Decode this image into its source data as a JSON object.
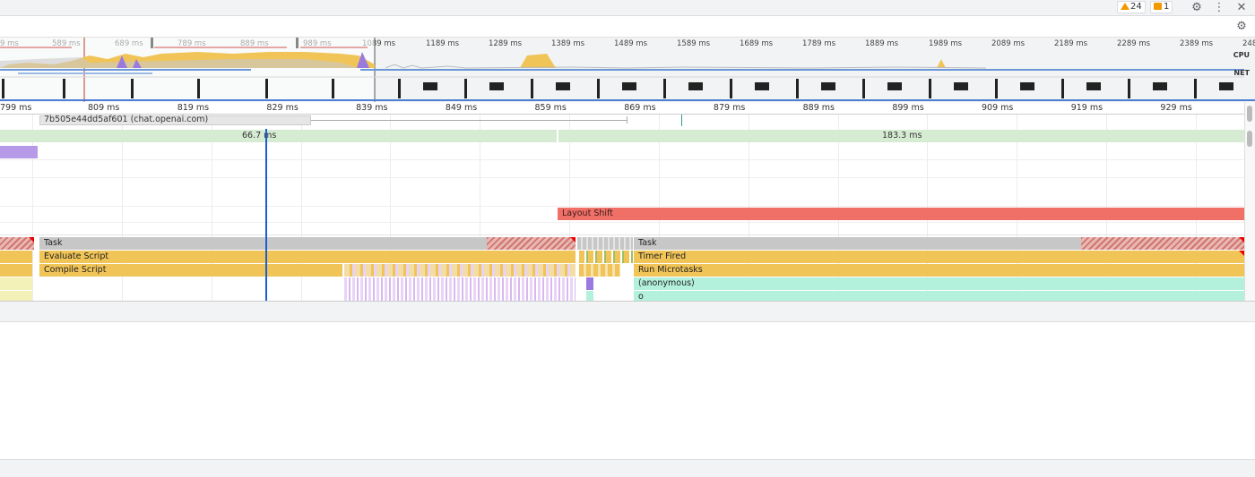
{
  "toolbar": {
    "warnings_count": "24",
    "messages_count": "1",
    "settings_icon": "gear-icon",
    "more_icon": "more-vert-icon",
    "close_icon": "close-icon",
    "capture_settings_icon": "gear-icon"
  },
  "overview": {
    "ticks": [
      "9 ms",
      "589 ms",
      "689 ms",
      "789 ms",
      "889 ms",
      "989 ms",
      "1089 ms",
      "1189 ms",
      "1289 ms",
      "1389 ms",
      "1489 ms",
      "1589 ms",
      "1689 ms",
      "1789 ms",
      "1889 ms",
      "1989 ms",
      "2089 ms",
      "2189 ms",
      "2289 ms",
      "2389 ms",
      "248"
    ],
    "cpu_label": "CPU",
    "net_label": "NET"
  },
  "ruler": {
    "ticks": [
      "799 ms",
      "809 ms",
      "819 ms",
      "829 ms",
      "839 ms",
      "849 ms",
      "859 ms",
      "869 ms",
      "879 ms",
      "889 ms",
      "899 ms",
      "909 ms",
      "919 ms",
      "929 ms"
    ]
  },
  "tracks": {
    "network_request": "7b505e44dd5af601 (chat.openai.com)",
    "frame1": "66.7 ms",
    "frame2": "183.3 ms",
    "layout_shift": "Layout Shift",
    "left": {
      "task": "Task",
      "evaluate": "Evaluate Script",
      "compile": "Compile Script"
    },
    "right": {
      "task": "Task",
      "timer": "Timer Fired",
      "microtasks": "Run Microtasks",
      "anonymous": "(anonymous)",
      "o": "o"
    }
  },
  "colors": {
    "task": "#c7c7c7",
    "script": "#f0c457",
    "frame": "#d6ecd2",
    "layout_shift": "#f07068",
    "function": "#b3f1dc",
    "selection": "#1a5fd0"
  }
}
